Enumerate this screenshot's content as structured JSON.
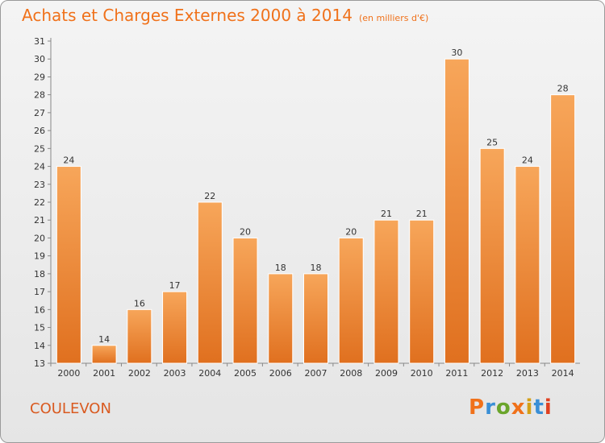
{
  "header": {
    "title": "Achats et Charges Externes 2000 à 2014",
    "subtitle": "(en milliers d'€)"
  },
  "footer": {
    "commune": "COULEVON",
    "logo_text": "Proxiti"
  },
  "colors": {
    "title": "#f0711a",
    "bar_top": "#f7a65a",
    "bar_bottom": "#e0701f",
    "logo": [
      "#f0711a",
      "#3a8fd6",
      "#6aa52b",
      "#f0711a",
      "#d4a017",
      "#3a8fd6",
      "#e04020"
    ]
  },
  "chart_data": {
    "type": "bar",
    "title": "Achats et Charges Externes 2000 à 2014",
    "subtitle": "(en milliers d'€)",
    "categories": [
      "2000",
      "2001",
      "2002",
      "2003",
      "2004",
      "2005",
      "2006",
      "2007",
      "2008",
      "2009",
      "2010",
      "2011",
      "2012",
      "2013",
      "2014"
    ],
    "values": [
      24,
      14,
      16,
      17,
      22,
      20,
      18,
      18,
      20,
      21,
      21,
      30,
      25,
      24,
      28
    ],
    "xlabel": "",
    "ylabel": "",
    "ylim": [
      13,
      31
    ],
    "yticks": [
      13,
      14,
      15,
      16,
      17,
      18,
      19,
      20,
      21,
      22,
      23,
      24,
      25,
      26,
      27,
      28,
      29,
      30,
      31
    ],
    "grid": false,
    "data_labels": true
  }
}
